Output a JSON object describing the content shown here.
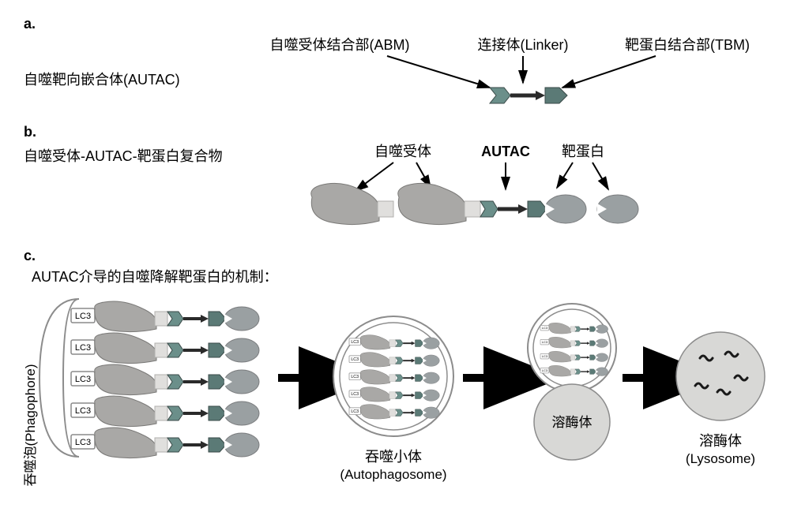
{
  "sections": {
    "a": {
      "label": "a.",
      "title": "自噬靶向嵌合体(AUTAC)",
      "labels": {
        "abm": "自噬受体结合部(ABM)",
        "linker": "连接体(Linker)",
        "tbm": "靶蛋白结合部(TBM)"
      }
    },
    "b": {
      "label": "b.",
      "title": "自噬受体-AUTAC-靶蛋白复合物",
      "labels": {
        "receptor": "自噬受体",
        "autac": "AUTAC",
        "target": "靶蛋白"
      }
    },
    "c": {
      "label": "c.",
      "title": "AUTAC介导的自噬降解靶蛋白的机制：",
      "phagophore": "吞噬泡(Phagophore)",
      "lc3": "LC3",
      "autophagosome_zh": "吞噬小体",
      "autophagosome_en": "(Autophagosome)",
      "lysosome_label": "溶酶体",
      "lysosome_zh": "溶酶体",
      "lysosome_en": "(Lysosome)"
    }
  },
  "colors": {
    "text": "#000000",
    "arrow": "#000000",
    "receptor_body": "#a9a8a6",
    "receptor_tail": "#e0dfdd",
    "abm_shape": "#6b8f8a",
    "linker_line": "#2a2a2a",
    "tbm_shape": "#5b7a76",
    "target_blob": "#9aa0a2",
    "lc3_box_fill": "#ffffff",
    "lc3_box_stroke": "#8a8a8a",
    "membrane_fill": "#ffffff",
    "membrane_stroke": "#8c8c8c",
    "circle_fill": "#ffffff",
    "circle_stroke": "#8c8c8c",
    "lysosome_fill": "#d8d8d6",
    "lysosome_stroke": "#8c8c8c",
    "squiggle": "#1a1a1a"
  },
  "fontsizes": {
    "section_label": 18,
    "title": 18,
    "labels": 18,
    "lc3": 11,
    "rotated": 17,
    "caption": 18
  }
}
